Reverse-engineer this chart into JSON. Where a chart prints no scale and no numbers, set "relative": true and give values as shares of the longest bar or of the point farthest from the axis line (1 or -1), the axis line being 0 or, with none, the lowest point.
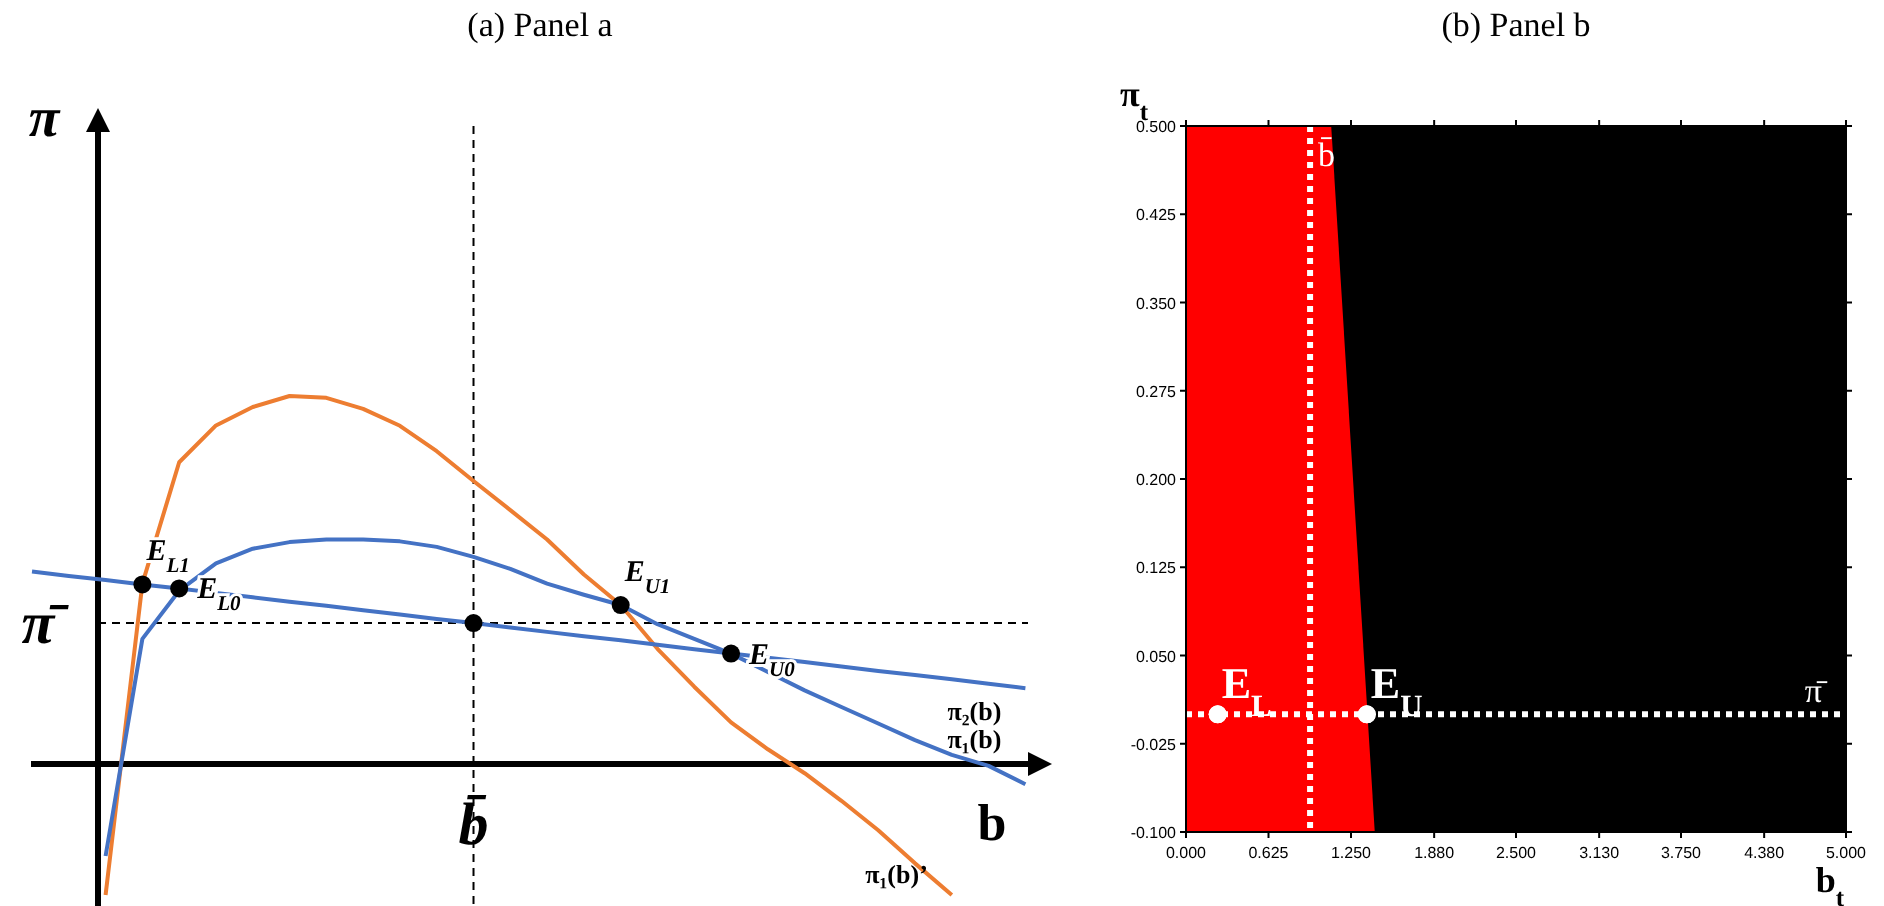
{
  "chart_data": [
    {
      "type": "line",
      "title": "(a) Panel a",
      "xlabel": "b",
      "ylabel": "π",
      "relative": true,
      "categories": [
        null,
        null,
        null,
        null,
        null,
        null,
        null,
        null,
        null,
        null,
        null,
        null,
        null,
        null,
        null,
        null,
        null,
        null,
        null,
        null,
        null,
        null,
        null,
        null,
        null,
        null,
        null,
        null
      ],
      "series": [
        {
          "name": "π₁(b)’",
          "color": "#ed7d31",
          "values": [
            null,
            null,
            -0.356,
            0.49,
            0.82,
            0.92,
            0.97,
            1.0,
            0.995,
            0.965,
            0.919,
            0.85,
            0.769,
            0.69,
            0.61,
            0.515,
            0.432,
            0.313,
            0.21,
            0.113,
            0.04,
            -0.025,
            -0.1,
            -0.18,
            -0.27,
            -0.356,
            null,
            null
          ]
        },
        {
          "name": "π₁(b)",
          "color": "#4472c4",
          "values": [
            null,
            null,
            -0.25,
            0.34,
            0.471,
            0.545,
            0.585,
            0.603,
            0.61,
            0.61,
            0.605,
            0.59,
            0.563,
            0.53,
            0.49,
            0.46,
            0.432,
            0.38,
            0.34,
            0.3,
            0.25,
            0.2,
            0.155,
            0.11,
            0.065,
            0.025,
            -0.005,
            -0.055
          ]
        },
        {
          "name": "π₂(b)",
          "color": "#4472c4",
          "values": [
            0.523,
            0.511,
            0.5,
            0.488,
            0.477,
            0.465,
            0.453,
            0.441,
            0.43,
            0.418,
            0.406,
            0.394,
            0.383,
            0.371,
            0.359,
            0.347,
            0.336,
            0.324,
            0.312,
            0.3,
            0.289,
            0.277,
            0.265,
            0.253,
            0.242,
            0.23,
            0.218,
            0.206
          ]
        },
        {
          "name": "E$_{L1}$",
          "color": "#000000",
          "marker": "circle",
          "values": [
            null,
            null,
            null,
            0.488,
            null,
            null,
            null,
            null,
            null,
            null,
            null,
            null,
            null,
            null,
            null,
            null,
            null,
            null,
            null,
            null,
            null,
            null,
            null,
            null,
            null,
            null,
            null,
            null
          ]
        },
        {
          "name": "E$_{L0}$",
          "color": "#000000",
          "marker": "circle",
          "values": [
            null,
            null,
            null,
            null,
            0.477,
            null,
            null,
            null,
            null,
            null,
            null,
            null,
            null,
            null,
            null,
            null,
            null,
            null,
            null,
            null,
            null,
            null,
            null,
            null,
            null,
            null,
            null,
            null
          ]
        },
        {
          "color": "#000000",
          "marker": "circle",
          "values": [
            null,
            null,
            null,
            null,
            null,
            null,
            null,
            null,
            null,
            null,
            null,
            null,
            0.383,
            null,
            null,
            null,
            null,
            null,
            null,
            null,
            null,
            null,
            null,
            null,
            null,
            null,
            null,
            null
          ]
        },
        {
          "name": "E$_{U1}$",
          "color": "#000000",
          "marker": "circle",
          "values": [
            null,
            null,
            null,
            null,
            null,
            null,
            null,
            null,
            null,
            null,
            null,
            null,
            null,
            null,
            null,
            null,
            0.432,
            null,
            null,
            null,
            null,
            null,
            null,
            null,
            null,
            null,
            null,
            null
          ]
        },
        {
          "name": "E$_{U0}$",
          "color": "#000000",
          "marker": "circle",
          "values": [
            null,
            null,
            null,
            null,
            null,
            null,
            null,
            null,
            null,
            null,
            null,
            null,
            null,
            null,
            null,
            null,
            null,
            null,
            null,
            0.3,
            null,
            null,
            null,
            null,
            null,
            null,
            null,
            null
          ]
        }
      ],
      "ref_lines": [
        {
          "axis": "y",
          "value": 0.383,
          "label": "π̄",
          "color": "#000000",
          "line_style": "dashed"
        }
      ],
      "annotations": [
        "b̄"
      ]
    },
    {
      "type": "area",
      "title": "(b) Panel b",
      "xlabel": "b$_{t}$",
      "ylabel": "π$_{t}$",
      "xlim": [
        0,
        5
      ],
      "xticks": [
        {
          "value": 0,
          "label": "0.000"
        },
        {
          "value": 0.625,
          "label": "0.625"
        },
        {
          "value": 1.25,
          "label": "1.250"
        },
        {
          "value": 1.88,
          "label": "1.880"
        },
        {
          "value": 2.5,
          "label": "2.500"
        },
        {
          "value": 3.13,
          "label": "3.130"
        },
        {
          "value": 3.75,
          "label": "3.750"
        },
        {
          "value": 4.38,
          "label": "4.380"
        },
        {
          "value": 5,
          "label": "5.000"
        }
      ],
      "ylim": [
        -0.1,
        0.5
      ],
      "yticks": [
        {
          "value": -0.1,
          "label": "-0.100"
        },
        {
          "value": -0.025,
          "label": "-0.025"
        },
        {
          "value": 0.05,
          "label": "0.050"
        },
        {
          "value": 0.125,
          "label": "0.125"
        },
        {
          "value": 0.2,
          "label": "0.200"
        },
        {
          "value": 0.275,
          "label": "0.275"
        },
        {
          "value": 0.35,
          "label": "0.350"
        },
        {
          "value": 0.425,
          "label": "0.425"
        },
        {
          "value": 0.5,
          "label": "0.500"
        }
      ],
      "series": [
        {
          "type": "area",
          "color": "#ff0000",
          "x": [
            0,
            0,
            1.1,
            1.43
          ],
          "values": [
            -0.1,
            0.5,
            0.5,
            -0.1
          ]
        },
        {
          "type": "scatter",
          "color": "#ffffff",
          "marker": "circle",
          "x": [
            0.24,
            1.37
          ],
          "values": [
            0,
            0
          ]
        }
      ],
      "bands": [
        {
          "axis": "x",
          "from": 0,
          "to": 5,
          "color": "#000000"
        }
      ],
      "ref_lines": [
        {
          "axis": "x",
          "value": 0.94,
          "label": "b̄",
          "color": "#ffffff",
          "line_style": "dotted"
        },
        {
          "axis": "y",
          "value": 0,
          "label": "π̄",
          "color": "#ffffff",
          "line_style": "dotted"
        }
      ],
      "annotations": [
        {
          "text": "E$_{L}$",
          "x": 0.24,
          "y": 0
        },
        {
          "text": "E$_{U}$",
          "x": 1.37,
          "y": 0
        }
      ]
    }
  ]
}
